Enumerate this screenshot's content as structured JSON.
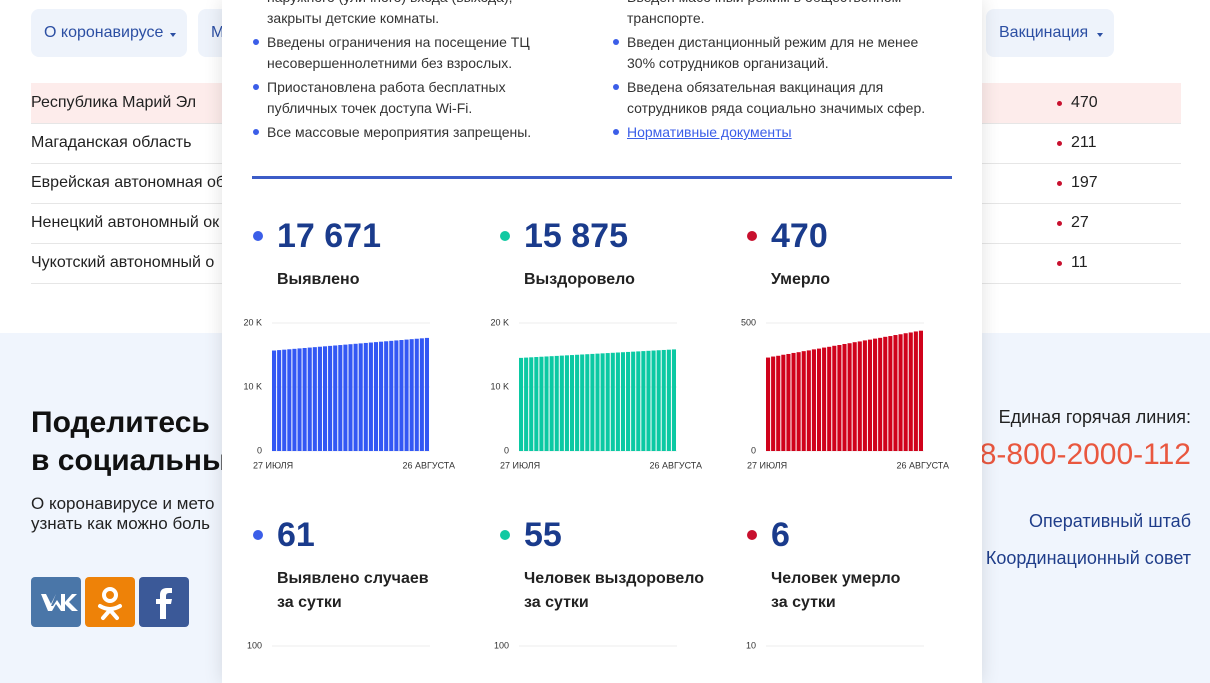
{
  "nav": {
    "items": [
      "О коронавирусе",
      "М",
      "Вакцинация"
    ]
  },
  "regions": {
    "rows": [
      [
        "Республика Марий Эл",
        470
      ],
      [
        "Магаданская область",
        211
      ],
      [
        "Еврейская автономная об",
        197
      ],
      [
        "Ненецкий автономный ок",
        27
      ],
      [
        "Чукотский автономный о",
        11
      ]
    ]
  },
  "share": {
    "title_lines": [
      "Поделитесь",
      "в социальны"
    ],
    "text_lines": [
      "О коронавирусе и мето",
      "узнать как можно боль"
    ]
  },
  "contacts": {
    "hotline_label": "Единая горячая линия:",
    "hotline": "8-800-2000-112",
    "links": [
      "Оперативный штаб",
      "Координационный совет"
    ]
  },
  "measures": {
    "left": [
      [
        "наружного (уличного) входа (выхода),",
        "закрыты детские комнаты."
      ],
      [
        "Введены ограничения на посещение ТЦ",
        "несовершеннолетними без взрослых."
      ],
      [
        "Приостановлена работа бесплатных",
        "публичных точек доступа Wi-Fi."
      ],
      [
        "Все массовые мероприятия запрещены."
      ]
    ],
    "right": [
      [
        "Введен масочный режим в общественном",
        "транспорте."
      ],
      [
        "Введен дистанционный режим для не менее",
        "30% сотрудников организаций."
      ],
      [
        "Введена обязательная вакцинация для",
        "сотрудников ряда социально значимых сфер."
      ]
    ],
    "link": "Нормативные документы"
  },
  "stats": [
    {
      "number": "17 671",
      "label_lines": [
        "Выявлено"
      ],
      "color": "#3b5ee8"
    },
    {
      "number": "15 875",
      "label_lines": [
        "Выздоровело"
      ],
      "color": "#10c9a2"
    },
    {
      "number": "470",
      "label_lines": [
        "Умерло"
      ],
      "color": "#c8102e"
    },
    {
      "number": "61",
      "label_lines": [
        "Выявлено случаев",
        "за сутки"
      ],
      "color": "#3b5ee8"
    },
    {
      "number": "55",
      "label_lines": [
        "Человек выздоровело",
        "за сутки"
      ],
      "color": "#10c9a2"
    },
    {
      "number": "6",
      "label_lines": [
        "Человек умерло",
        "за сутки"
      ],
      "color": "#c8102e"
    }
  ],
  "charts": [
    {
      "type": "bar",
      "color": "#3358f4",
      "categories": [
        "27 ИЮЛЯ",
        null,
        null,
        null,
        null,
        null,
        null,
        null,
        null,
        null,
        null,
        null,
        null,
        null,
        null,
        null,
        null,
        null,
        null,
        null,
        null,
        null,
        null,
        null,
        null,
        null,
        null,
        null,
        null,
        null,
        "26 АВГУСТА"
      ],
      "values": [
        15700,
        15766,
        15832,
        15897,
        15963,
        16029,
        16094,
        16160,
        16226,
        16291,
        16357,
        16423,
        16488,
        16554,
        16620,
        16686,
        16751,
        16817,
        16883,
        16948,
        17014,
        17080,
        17145,
        17211,
        17277,
        17342,
        17408,
        17474,
        17540,
        17605,
        17671
      ],
      "ylim": [
        0,
        20000
      ],
      "yticks": [
        0,
        {
          "value": 10000,
          "label": "10 K"
        },
        {
          "value": 20000,
          "label": "20 K"
        }
      ],
      "grid": true
    },
    {
      "type": "bar",
      "color": "#0bc9a3",
      "categories": [
        "27 ИЮЛЯ",
        null,
        null,
        null,
        null,
        null,
        null,
        null,
        null,
        null,
        null,
        null,
        null,
        null,
        null,
        null,
        null,
        null,
        null,
        null,
        null,
        null,
        null,
        null,
        null,
        null,
        null,
        null,
        null,
        null,
        "26 АВГУСТА"
      ],
      "values": [
        14550,
        14594,
        14638,
        14683,
        14727,
        14771,
        14815,
        14859,
        14903,
        14948,
        14992,
        15036,
        15080,
        15124,
        15168,
        15213,
        15257,
        15301,
        15345,
        15389,
        15433,
        15478,
        15522,
        15566,
        15610,
        15654,
        15698,
        15743,
        15787,
        15831,
        15875
      ],
      "ylim": [
        0,
        20000
      ],
      "yticks": [
        0,
        {
          "value": 10000,
          "label": "10 K"
        },
        {
          "value": 20000,
          "label": "20 K"
        }
      ],
      "grid": true
    },
    {
      "type": "bar",
      "color": "#d0021b",
      "categories": [
        "27 ИЮЛЯ",
        null,
        null,
        null,
        null,
        null,
        null,
        null,
        null,
        null,
        null,
        null,
        null,
        null,
        null,
        null,
        null,
        null,
        null,
        null,
        null,
        null,
        null,
        null,
        null,
        null,
        null,
        null,
        null,
        null,
        "26 АВГУСТА"
      ],
      "values": [
        365,
        369,
        372,
        376,
        379,
        383,
        386,
        390,
        393,
        397,
        400,
        404,
        407,
        411,
        414,
        418,
        421,
        425,
        428,
        432,
        435,
        439,
        442,
        446,
        449,
        453,
        456,
        460,
        463,
        467,
        470
      ],
      "ylim": [
        0,
        500
      ],
      "yticks": [
        0,
        500
      ],
      "grid": true
    },
    {
      "type": "bar",
      "color": "#3358f4",
      "ylim": [
        0,
        100
      ],
      "yticks": [
        100
      ],
      "grid": true
    },
    {
      "type": "bar",
      "color": "#0bc9a3",
      "ylim": [
        0,
        100
      ],
      "yticks": [
        100
      ],
      "grid": true
    },
    {
      "type": "bar",
      "color": "#d0021b",
      "ylim": [
        0,
        10
      ],
      "yticks": [
        10
      ],
      "grid": true
    }
  ]
}
